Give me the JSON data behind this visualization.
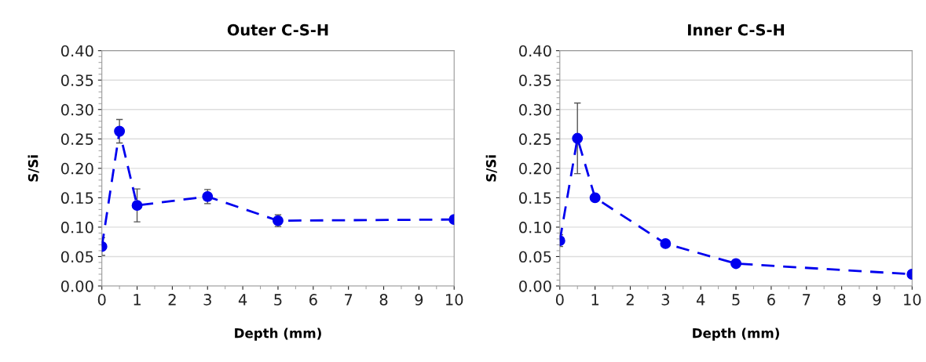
{
  "chart_data": [
    {
      "type": "line",
      "title": "Outer C-S-H",
      "xlabel": "Depth (mm)",
      "ylabel": "S/Si",
      "x": [
        0,
        0.5,
        1,
        3,
        5,
        10
      ],
      "series": [
        {
          "color": "#0000ee",
          "values": [
            0.067,
            0.263,
            0.137,
            0.152,
            0.111,
            0.113
          ],
          "errors": [
            0.015,
            0.02,
            0.028,
            0.012,
            0.01,
            null
          ]
        }
      ],
      "xlim": [
        0,
        10
      ],
      "xticks": [
        0,
        1,
        2,
        3,
        4,
        5,
        6,
        7,
        8,
        9,
        10
      ],
      "ylim": [
        0,
        0.4
      ],
      "yticks": [
        {
          "value": 0,
          "label": "0.00"
        },
        {
          "value": 0.05,
          "label": "0.05"
        },
        {
          "value": 0.1,
          "label": "0.10"
        },
        {
          "value": 0.15,
          "label": "0.15"
        },
        {
          "value": 0.2,
          "label": "0.20"
        },
        {
          "value": 0.25,
          "label": "0.25"
        },
        {
          "value": 0.3,
          "label": "0.30"
        },
        {
          "value": 0.35,
          "label": "0.35"
        },
        {
          "value": 0.4,
          "label": "0.40"
        }
      ],
      "grid": "y",
      "marker": "circle",
      "line_style": "dashed"
    },
    {
      "type": "line",
      "title": "Inner C-S-H",
      "xlabel": "Depth (mm)",
      "ylabel": "S/Si",
      "x": [
        0,
        0.5,
        1,
        3,
        5,
        10
      ],
      "series": [
        {
          "color": "#0000ee",
          "values": [
            0.077,
            0.251,
            0.15,
            0.072,
            0.038,
            0.02
          ],
          "errors": [
            0.01,
            0.06,
            null,
            null,
            null,
            null
          ]
        }
      ],
      "xlim": [
        0,
        10
      ],
      "xticks": [
        0,
        1,
        2,
        3,
        4,
        5,
        6,
        7,
        8,
        9,
        10
      ],
      "ylim": [
        0,
        0.4
      ],
      "yticks": [
        {
          "value": 0,
          "label": "0.00"
        },
        {
          "value": 0.05,
          "label": "0.05"
        },
        {
          "value": 0.1,
          "label": "0.10"
        },
        {
          "value": 0.15,
          "label": "0.15"
        },
        {
          "value": 0.2,
          "label": "0.20"
        },
        {
          "value": 0.25,
          "label": "0.25"
        },
        {
          "value": 0.3,
          "label": "0.30"
        },
        {
          "value": 0.35,
          "label": "0.35"
        },
        {
          "value": 0.4,
          "label": "0.40"
        }
      ],
      "grid": "y",
      "marker": "circle",
      "line_style": "dashed"
    }
  ]
}
